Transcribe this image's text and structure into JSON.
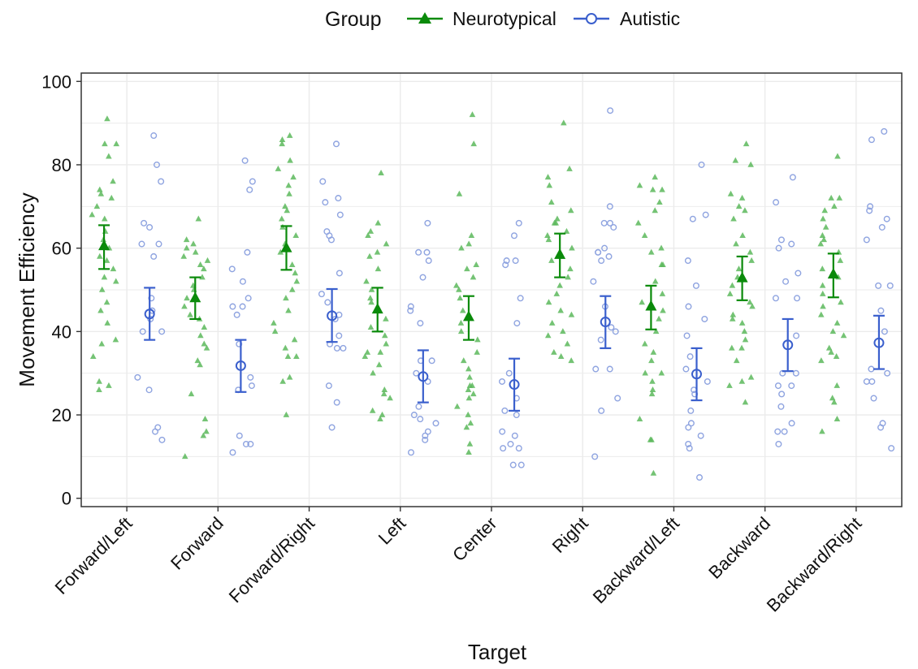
{
  "chart_data": {
    "type": "scatter",
    "xlabel": "Target",
    "ylabel": "Movement Efficiency",
    "ylim": [
      -2,
      102
    ],
    "yticks": [
      0,
      20,
      40,
      60,
      80,
      100
    ],
    "categories": [
      "Forward/Left",
      "Forward",
      "Forward/Right",
      "Left",
      "Center",
      "Right",
      "Backward/Left",
      "Backward",
      "Backward/Right"
    ],
    "grid": true,
    "legend": {
      "title": "Group",
      "position": "top",
      "entries": [
        "Neurotypical",
        "Autistic"
      ]
    },
    "series": [
      {
        "name": "Neurotypical",
        "color": "#0a8a0a",
        "point_color": "#5cb85c",
        "marker": "triangle",
        "means": [
          60.5,
          48.0,
          60.0,
          45.3,
          43.5,
          58.4,
          46.0,
          52.8,
          53.7
        ],
        "ci_low": [
          55.0,
          43.0,
          54.8,
          40.0,
          38.0,
          53.0,
          40.5,
          47.5,
          48.2
        ],
        "ci_high": [
          65.5,
          53.0,
          65.3,
          50.5,
          48.5,
          63.5,
          51.0,
          58.0,
          58.7
        ],
        "points": [
          [
            91,
            85,
            85,
            82,
            76,
            74,
            73,
            72,
            70,
            68,
            67,
            64,
            62,
            60,
            58,
            57,
            55,
            53,
            52,
            50,
            47,
            45,
            42,
            38,
            37,
            34,
            28,
            27,
            26
          ],
          [
            67,
            62,
            61,
            60,
            59,
            58,
            57,
            56,
            55,
            53,
            51,
            50,
            48,
            46,
            44,
            43,
            41,
            39,
            37,
            36,
            33,
            32,
            25,
            19,
            16,
            15,
            10
          ],
          [
            87,
            86,
            85,
            81,
            79,
            77,
            75,
            73,
            70,
            69,
            67,
            65,
            63,
            61,
            59,
            56,
            54,
            52,
            50,
            48,
            45,
            42,
            40,
            38,
            36,
            34,
            34,
            29,
            28,
            20
          ],
          [
            78,
            66,
            64,
            63,
            61,
            59,
            58,
            55,
            52,
            50,
            48,
            47,
            45,
            43,
            41,
            39,
            37,
            35,
            35,
            34,
            32,
            30,
            26,
            25,
            24,
            21,
            20,
            19
          ],
          [
            92,
            85,
            73,
            63,
            61,
            60,
            56,
            55,
            53,
            51,
            50,
            48,
            45,
            42,
            40,
            38,
            35,
            33,
            31,
            29,
            27,
            27,
            26,
            25,
            24,
            22,
            20,
            18,
            17,
            13,
            11
          ],
          [
            90,
            79,
            77,
            75,
            71,
            69,
            67,
            66,
            66,
            64,
            63,
            62,
            60,
            58,
            57,
            55,
            53,
            51,
            49,
            47,
            45,
            44,
            42,
            40,
            39,
            37,
            35,
            34,
            33
          ],
          [
            77,
            75,
            74,
            74,
            71,
            69,
            66,
            63,
            60,
            59,
            56,
            56,
            52,
            49,
            47,
            45,
            43,
            40,
            37,
            35,
            33,
            30,
            30,
            28,
            26,
            25,
            19,
            14,
            14,
            6
          ],
          [
            85,
            81,
            80,
            73,
            72,
            70,
            69,
            67,
            63,
            61,
            59,
            57,
            55,
            53,
            51,
            49,
            47,
            46,
            44,
            43,
            42,
            40,
            38,
            36,
            36,
            33,
            29,
            28,
            27,
            23
          ],
          [
            82,
            72,
            72,
            70,
            69,
            67,
            65,
            63,
            62,
            61,
            59,
            57,
            55,
            53,
            51,
            49,
            47,
            46,
            44,
            42,
            40,
            39,
            36,
            35,
            34,
            33,
            27,
            24,
            23,
            19,
            16
          ]
        ]
      },
      {
        "name": "Autistic",
        "color": "#3a5fcd",
        "point_color": "#8fa4e0",
        "marker": "circle",
        "means": [
          44.2,
          31.8,
          43.8,
          29.2,
          27.3,
          42.3,
          29.8,
          36.8,
          37.3
        ],
        "ci_low": [
          38.0,
          25.5,
          37.5,
          23.0,
          21.0,
          36.0,
          23.5,
          30.5,
          31.0
        ],
        "ci_high": [
          50.5,
          38.0,
          50.2,
          35.5,
          33.5,
          48.5,
          36.0,
          43.0,
          43.8
        ],
        "points": [
          [
            87,
            80,
            76,
            66,
            65,
            61,
            61,
            58,
            48,
            45,
            43,
            40,
            40,
            29,
            26,
            17,
            16,
            14
          ],
          [
            81,
            76,
            74,
            59,
            55,
            52,
            48,
            46,
            46,
            44,
            37,
            29,
            27,
            26,
            15,
            13,
            13,
            11
          ],
          [
            85,
            76,
            72,
            71,
            68,
            64,
            63,
            62,
            54,
            49,
            47,
            44,
            43,
            39,
            37,
            36,
            36,
            27,
            23,
            17
          ],
          [
            66,
            59,
            59,
            57,
            53,
            46,
            45,
            42,
            33,
            33,
            30,
            28,
            22,
            20,
            19,
            18,
            16,
            15,
            14,
            11
          ],
          [
            66,
            63,
            57,
            57,
            56,
            48,
            42,
            30,
            28,
            24,
            21,
            20,
            16,
            15,
            13,
            12,
            12,
            8,
            8
          ],
          [
            93,
            70,
            66,
            66,
            65,
            60,
            59,
            59,
            58,
            57,
            52,
            46,
            41,
            40,
            38,
            31,
            31,
            24,
            21,
            10
          ],
          [
            80,
            68,
            67,
            57,
            51,
            46,
            43,
            39,
            34,
            31,
            28,
            26,
            25,
            21,
            18,
            17,
            15,
            13,
            12,
            5
          ],
          [
            77,
            71,
            62,
            61,
            60,
            54,
            52,
            48,
            48,
            39,
            30,
            30,
            27,
            27,
            25,
            22,
            18,
            16,
            16,
            13
          ],
          [
            88,
            86,
            70,
            69,
            67,
            65,
            62,
            51,
            51,
            45,
            40,
            31,
            30,
            28,
            28,
            24,
            18,
            17,
            12
          ]
        ]
      }
    ]
  }
}
